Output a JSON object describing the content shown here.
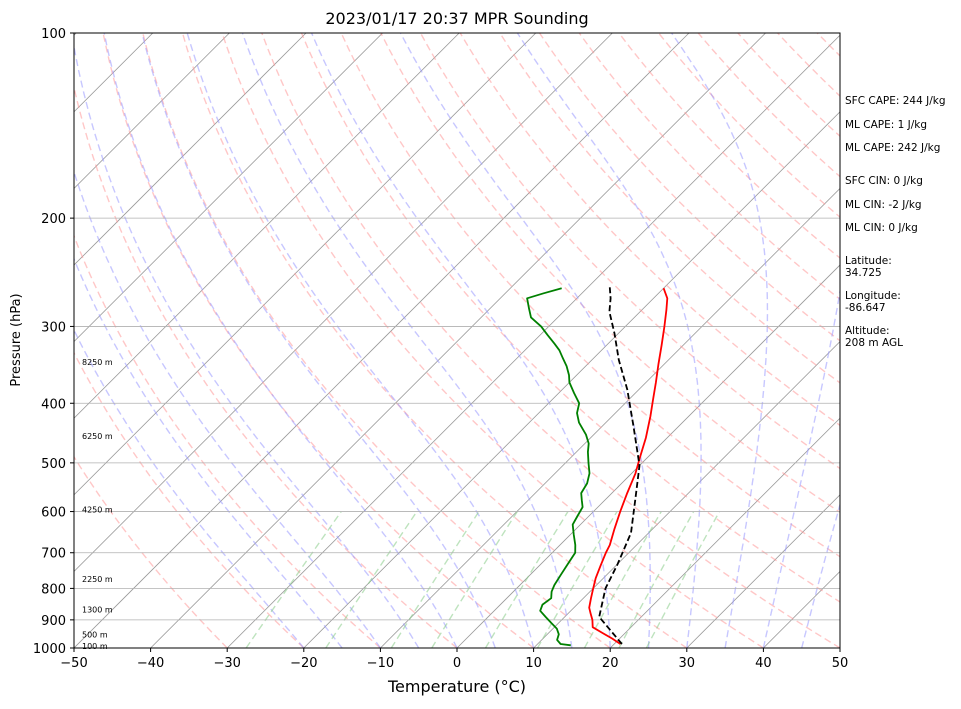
{
  "chart_data": {
    "type": "line",
    "title": "2023/01/17 20:37 MPR Sounding",
    "xlabel": "Temperature (°C)",
    "ylabel": "Pressure (hPa)",
    "xlim": [
      -50,
      50
    ],
    "ylim": [
      1000,
      100
    ],
    "y_scale": "log",
    "skew": "45-degree skew-T",
    "x_ticks": [
      -50,
      -40,
      -30,
      -20,
      -10,
      0,
      10,
      20,
      30,
      40,
      50
    ],
    "x_tick_labels": [
      "−50",
      "−40",
      "−30",
      "−20",
      "−10",
      "0",
      "10",
      "20",
      "30",
      "40",
      "50"
    ],
    "y_ticks": [
      100,
      200,
      300,
      400,
      500,
      600,
      700,
      800,
      900,
      1000
    ],
    "y_tick_labels": [
      "100",
      "200",
      "300",
      "400",
      "500",
      "600",
      "700",
      "800",
      "900",
      "1000"
    ],
    "grid": true,
    "height_labels": [
      {
        "text": "100 m",
        "p": 993
      },
      {
        "text": "500 m",
        "p": 950
      },
      {
        "text": "1300 m",
        "p": 865
      },
      {
        "text": "2250 m",
        "p": 772
      },
      {
        "text": "4250 m",
        "p": 595
      },
      {
        "text": "6250 m",
        "p": 452
      },
      {
        "text": "8250 m",
        "p": 343
      }
    ],
    "series": [
      {
        "color": "#ff0000",
        "points": [
          [
            20.8,
            985
          ],
          [
            19,
            965
          ],
          [
            17,
            945
          ],
          [
            15,
            925
          ],
          [
            14,
            900
          ],
          [
            13,
            880
          ],
          [
            12,
            860
          ],
          [
            11,
            830
          ],
          [
            10,
            800
          ],
          [
            9,
            770
          ],
          [
            8,
            735
          ],
          [
            7,
            700
          ],
          [
            6.5,
            680
          ],
          [
            5,
            640
          ],
          [
            3.5,
            600
          ],
          [
            2,
            560
          ],
          [
            0.5,
            520
          ],
          [
            -1,
            490
          ],
          [
            -2.8,
            455
          ],
          [
            -5,
            420
          ],
          [
            -6.8,
            395
          ],
          [
            -8.7,
            370
          ],
          [
            -10.8,
            345
          ],
          [
            -12.8,
            322
          ],
          [
            -14.8,
            301
          ],
          [
            -16.8,
            282
          ],
          [
            -18.2,
            270
          ],
          [
            -20,
            260
          ]
        ]
      },
      {
        "color": "#008000",
        "points": [
          [
            14.5,
            990
          ],
          [
            13,
            985
          ],
          [
            12,
            970
          ],
          [
            11.5,
            950
          ],
          [
            10.5,
            930
          ],
          [
            9,
            910
          ],
          [
            7.5,
            890
          ],
          [
            6,
            870
          ],
          [
            5.5,
            850
          ],
          [
            5.8,
            830
          ],
          [
            5,
            810
          ],
          [
            4.5,
            790
          ],
          [
            4,
            760
          ],
          [
            3.5,
            730
          ],
          [
            3,
            700
          ],
          [
            2,
            680
          ],
          [
            0.5,
            655
          ],
          [
            -1,
            630
          ],
          [
            -1.5,
            610
          ],
          [
            -2,
            590
          ],
          [
            -3,
            575
          ],
          [
            -4,
            560
          ],
          [
            -4.5,
            540
          ],
          [
            -5.5,
            520
          ],
          [
            -7,
            500
          ],
          [
            -8.5,
            480
          ],
          [
            -9.5,
            465
          ],
          [
            -11,
            450
          ],
          [
            -13.5,
            430
          ],
          [
            -15,
            415
          ],
          [
            -16,
            400
          ],
          [
            -18,
            385
          ],
          [
            -20,
            370
          ],
          [
            -21,
            360
          ],
          [
            -22.5,
            348
          ],
          [
            -24,
            338
          ],
          [
            -25.5,
            328
          ],
          [
            -27,
            320
          ],
          [
            -29,
            310
          ],
          [
            -31,
            300
          ],
          [
            -33.5,
            290
          ],
          [
            -35,
            280
          ],
          [
            -36.5,
            270
          ],
          [
            -35,
            265
          ],
          [
            -33.3,
            260
          ]
        ]
      },
      {
        "color": "#000000",
        "dashed": true,
        "points": [
          [
            21,
            985
          ],
          [
            14.5,
            890
          ],
          [
            11.6,
            800
          ],
          [
            10,
            730
          ],
          [
            7.7,
            650
          ],
          [
            3.7,
            570
          ],
          [
            0,
            505
          ],
          [
            -6,
            435
          ],
          [
            -11.5,
            380
          ],
          [
            -16.5,
            340
          ],
          [
            -20.5,
            308
          ],
          [
            -24,
            284
          ],
          [
            -25.6,
            270
          ],
          [
            -27.3,
            258
          ]
        ]
      }
    ]
  },
  "stats": [
    "SFC CAPE: 244 J/kg",
    "ML CAPE: 1 J/kg",
    "ML CAPE: 242 J/kg",
    "SFC CIN: 0 J/kg",
    "ML CIN: -2 J/kg",
    "ML CIN: 0 J/kg",
    "Latitude:",
    "34.725",
    "Longitude:",
    "-86.647",
    "Altitude:",
    "208 m AGL"
  ],
  "colors": {
    "temperature": "#ff0000",
    "dewpoint": "#008000",
    "parcel": "#000000",
    "dry_adiabat": "#ff9999",
    "moist_adiabat": "#9999ff",
    "mixing_ratio": "#88cc88",
    "isotherm": "#999999"
  }
}
